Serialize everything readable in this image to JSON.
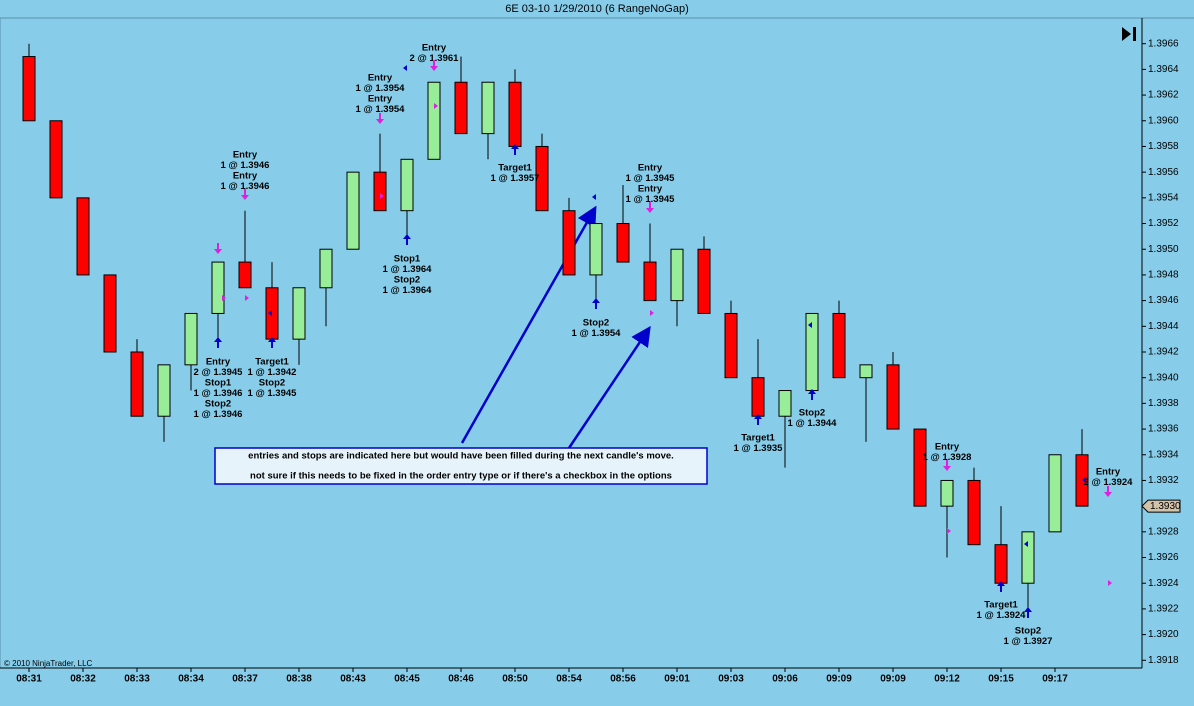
{
  "chart_data": {
    "type": "candlestick",
    "title": "6E 03-10  1/29/2010 (6 RangeNoGap)",
    "copyright": "© 2010 NinjaTrader, LLC",
    "categories": [
      "08:31",
      null,
      "08:32",
      null,
      "08:33",
      null,
      "08:34",
      null,
      "08:37",
      null,
      "08:38",
      null,
      "08:43",
      null,
      "08:45",
      null,
      "08:46",
      null,
      "08:50",
      null,
      "08:54",
      null,
      "08:56",
      null,
      "09:01",
      null,
      "09:03",
      null,
      "09:06",
      null,
      "09:09",
      null,
      "09:09",
      null,
      "09:12",
      null,
      "09:15",
      null,
      "09:17",
      null
    ],
    "open": [
      1.3965,
      1.396,
      1.3954,
      1.3948,
      1.3942,
      1.3937,
      1.3941,
      1.3945,
      1.3949,
      1.3947,
      1.3943,
      1.3947,
      1.395,
      1.3956,
      1.3953,
      1.3957,
      1.3963,
      1.3959,
      1.3963,
      1.3958,
      1.3953,
      1.3948,
      1.3952,
      1.3949,
      1.3946,
      1.395,
      1.3945,
      1.394,
      1.3937,
      1.3939,
      1.3945,
      1.394,
      1.3941,
      1.3936,
      1.393,
      1.3932,
      1.3927,
      1.3924,
      1.3928,
      1.3934
    ],
    "high": [
      1.3966,
      1.396,
      1.3954,
      1.3948,
      1.3943,
      1.3941,
      1.3945,
      1.3949,
      1.3953,
      1.3949,
      1.3947,
      1.395,
      1.3956,
      1.3959,
      1.3957,
      1.3963,
      1.3965,
      1.3963,
      1.3964,
      1.3959,
      1.3954,
      1.3952,
      1.3955,
      1.3952,
      1.395,
      1.3951,
      1.3946,
      1.3943,
      1.3939,
      1.3945,
      1.3946,
      1.3941,
      1.3942,
      1.3936,
      1.3932,
      1.3933,
      1.393,
      1.3928,
      1.3934,
      1.3936
    ],
    "low": [
      1.396,
      1.3954,
      1.3948,
      1.3942,
      1.3937,
      1.3935,
      1.3939,
      1.3943,
      1.3947,
      1.3943,
      1.3941,
      1.3944,
      1.395,
      1.3953,
      1.3951,
      1.3957,
      1.3959,
      1.3957,
      1.3958,
      1.3953,
      1.3948,
      1.3946,
      1.3949,
      1.3946,
      1.3944,
      1.3945,
      1.394,
      1.3937,
      1.3933,
      1.3939,
      1.394,
      1.3935,
      1.3936,
      1.393,
      1.3926,
      1.3927,
      1.3924,
      1.3922,
      1.3928,
      1.393
    ],
    "close": [
      1.396,
      1.3954,
      1.3948,
      1.3942,
      1.3937,
      1.3941,
      1.3945,
      1.3949,
      1.3947,
      1.3943,
      1.3947,
      1.395,
      1.3956,
      1.3953,
      1.3957,
      1.3963,
      1.3959,
      1.3963,
      1.3958,
      1.3953,
      1.3948,
      1.3952,
      1.3949,
      1.3946,
      1.395,
      1.3945,
      1.394,
      1.3937,
      1.3939,
      1.3945,
      1.394,
      1.3941,
      1.3936,
      1.393,
      1.3932,
      1.3927,
      1.3924,
      1.3928,
      1.3934,
      1.393
    ],
    "up_color": "#98ee98",
    "down_color": "#ff0000",
    "ylim": [
      1.39174,
      1.3968
    ],
    "yticks": [
      1.3918,
      {
        "value": 1.392,
        "label": "1.3920"
      },
      1.3922,
      1.3924,
      1.3926,
      1.3928,
      {
        "value": 1.393,
        "label": "1.3930"
      },
      1.3932,
      1.3934,
      1.3936,
      1.3938,
      {
        "value": 1.394,
        "label": "1.3940"
      },
      1.3942,
      1.3944,
      1.3946,
      1.3948,
      {
        "value": 1.395,
        "label": "1.3950"
      },
      1.3952,
      1.3954,
      1.3956,
      1.3958,
      {
        "value": 1.396,
        "label": "1.3960"
      },
      1.3962,
      1.3964,
      1.3966
    ],
    "last_price": {
      "value": 1.393,
      "label": "1.3930"
    },
    "annotations": [
      [
        "Entry",
        "2 @ 1.3961"
      ],
      [
        "Entry",
        "1 @ 1.3954",
        "Entry",
        "1 @ 1.3954"
      ],
      [
        "Entry",
        "1 @ 1.3946",
        "Entry",
        "1 @ 1.3946"
      ],
      [
        "Entry",
        "2 @ 1.3945",
        "Stop1",
        "1 @ 1.3946",
        "Stop2",
        "1 @ 1.3946"
      ],
      [
        "Target1",
        "1 @ 1.3942",
        "Stop2",
        "1 @ 1.3945"
      ],
      [
        "Stop1",
        "1 @ 1.3964",
        "Stop2",
        "1 @ 1.3964"
      ],
      [
        "Target1",
        "1 @ 1.3957"
      ],
      [
        "Entry",
        "1 @ 1.3945",
        "Entry",
        "1 @ 1.3945"
      ],
      [
        "Stop2",
        "1 @ 1.3954"
      ],
      [
        "Target1",
        "1 @ 1.3935"
      ],
      [
        "Stop2",
        "1 @ 1.3944"
      ],
      [
        "Entry",
        "1 @ 1.3928"
      ],
      [
        "Entry",
        "2 @ 1.3924"
      ],
      [
        "Target1",
        "1 @ 1.3924"
      ],
      [
        "Stop2",
        "1 @ 1.3927"
      ]
    ],
    "callout": [
      "entries and stops are indicated here but would have been filled during the next candle's move.",
      "not sure if this needs to be fixed in the order entry type or if there's a checkbox in the options"
    ]
  }
}
